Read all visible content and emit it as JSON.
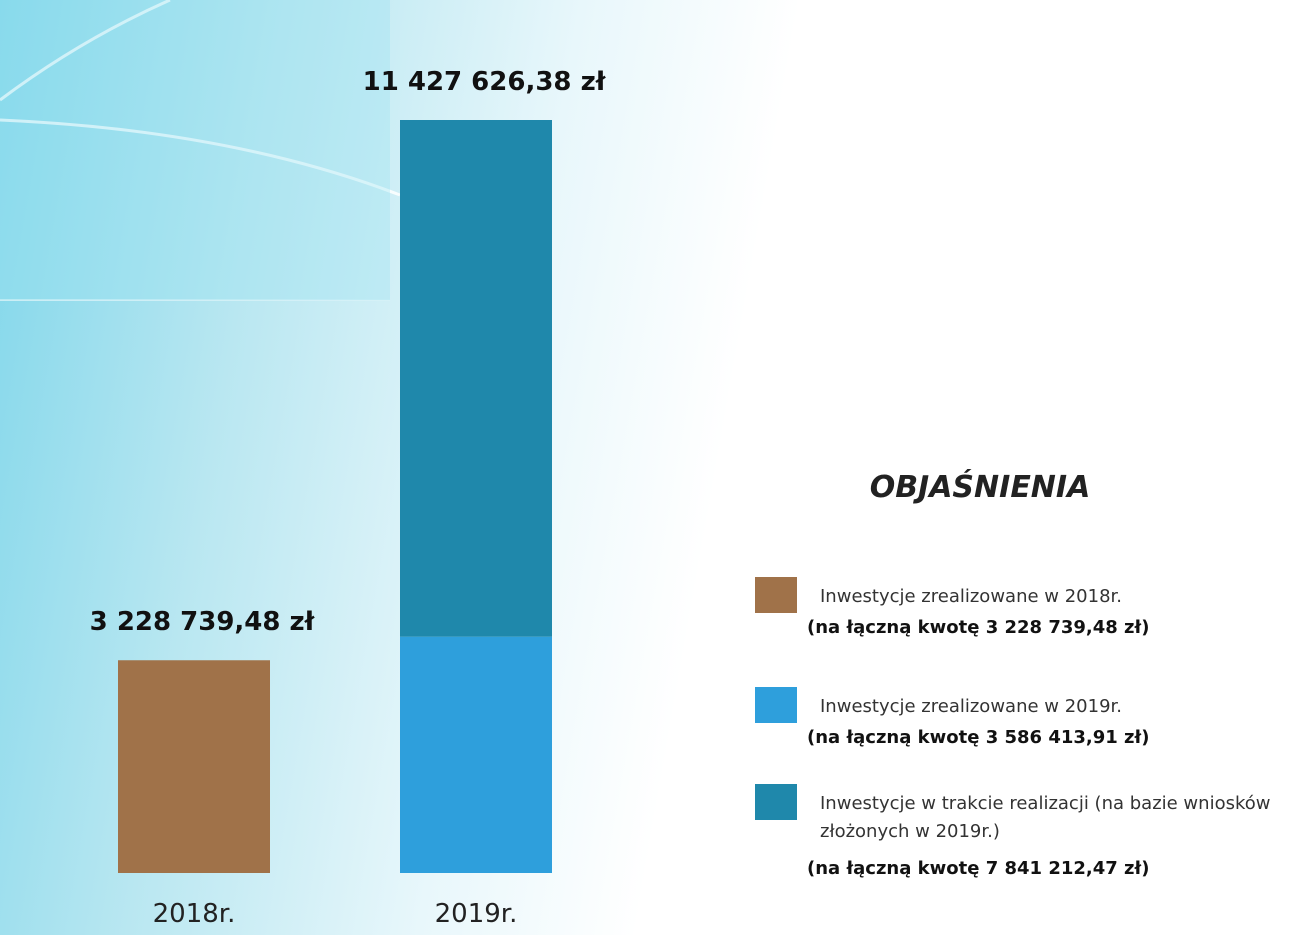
{
  "chart_data": {
    "type": "stacked_bar",
    "categories": [
      "2018r.",
      "2019r."
    ],
    "series": [
      {
        "name": "Inwestycje zrealizowane w 2018r.",
        "detail": "(na łączną kwotę 3 228 739,48 zł)",
        "color": "#a07249",
        "values": [
          3228739.48,
          null
        ]
      },
      {
        "name": "Inwestycje zrealizowane w 2019r.",
        "detail": "(na łączną kwotę 3 586 413,91 zł)",
        "color": "#2e9fdc",
        "values": [
          null,
          3586413.91
        ]
      },
      {
        "name": "Inwestycje w trakcie realizacji (na bazie wniosków złożonych w 2019r.)",
        "detail": "(na łączną kwotę 7 841 212,47 zł)",
        "color": "#1f88ab",
        "values": [
          null,
          7841212.47
        ]
      }
    ],
    "totals": [
      3228739.48,
      11427626.38
    ],
    "total_labels": [
      "3 228 739,48 zł",
      "11 427 626,38 zł"
    ],
    "legend_title": "OBJAŚNIENIA"
  }
}
